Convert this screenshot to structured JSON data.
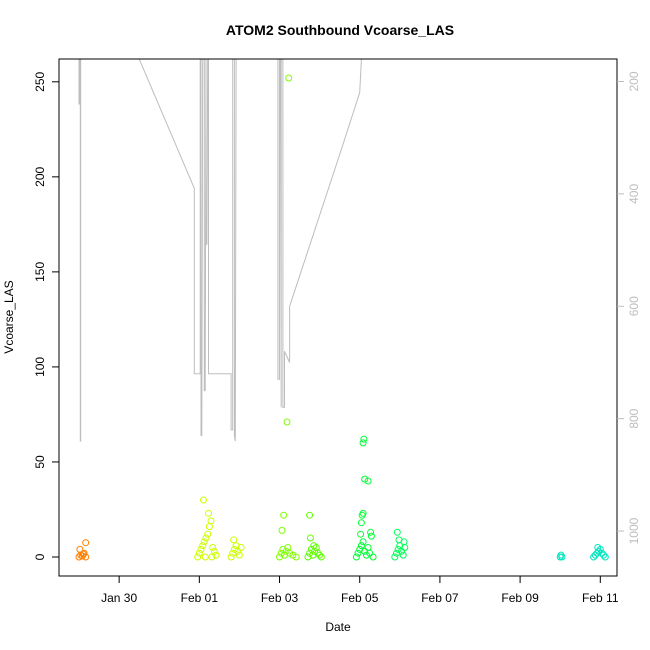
{
  "chart_data": {
    "type": "scatter",
    "title": "ATOM2 Southbound Vcoarse_LAS",
    "xlabel": "Date",
    "ylabel": "Vcoarse_LAS",
    "x_axis": {
      "type": "date",
      "range": [
        "2024-01-28T12:00",
        "2024-02-11T10:00"
      ],
      "ticks": [
        "2024-01-30",
        "2024-02-01",
        "2024-02-03",
        "2024-02-05",
        "2024-02-07",
        "2024-02-09",
        "2024-02-11"
      ],
      "tick_labels": [
        "Jan 30",
        "Feb 01",
        "Feb 03",
        "Feb 05",
        "Feb 07",
        "Feb 09",
        "Feb 11"
      ]
    },
    "y_left": {
      "range": [
        -10,
        262
      ],
      "ticks": [
        0,
        50,
        100,
        150,
        200,
        250
      ],
      "tick_labels": [
        "0",
        "50",
        "100",
        "150",
        "200",
        "250"
      ]
    },
    "y_right": {
      "reversed": true,
      "range": [
        1080,
        160
      ],
      "ticks": [
        200,
        400,
        600,
        800,
        1000
      ],
      "tick_labels": [
        "200",
        "400",
        "600",
        "800",
        "1000"
      ],
      "color": "#bdbdbd"
    },
    "points": [
      {
        "x": "2024-01-29T00:00",
        "y": 0,
        "color": "#ff7f00"
      },
      {
        "x": "2024-01-29T01:00",
        "y": 1,
        "color": "#ff7f00"
      },
      {
        "x": "2024-01-29T02:00",
        "y": 0.5,
        "color": "#ff7f00"
      },
      {
        "x": "2024-01-29T03:00",
        "y": 2,
        "color": "#ff7f00"
      },
      {
        "x": "2024-01-29T00:30",
        "y": 4,
        "color": "#ff7f00"
      },
      {
        "x": "2024-01-29T04:00",
        "y": 7.5,
        "color": "#ff7f00"
      },
      {
        "x": "2024-01-29T02:30",
        "y": 1.5,
        "color": "#ff7f00"
      },
      {
        "x": "2024-01-29T04:00",
        "y": 0,
        "color": "#ff7f00"
      },
      {
        "x": "2024-01-31T23:00",
        "y": 0,
        "color": "#ccff00"
      },
      {
        "x": "2024-02-01T00:00",
        "y": 2,
        "color": "#ccff00"
      },
      {
        "x": "2024-02-01T01:00",
        "y": 4,
        "color": "#ccff00"
      },
      {
        "x": "2024-02-01T02:00",
        "y": 6,
        "color": "#ccff00"
      },
      {
        "x": "2024-02-01T03:00",
        "y": 8,
        "color": "#ccff00"
      },
      {
        "x": "2024-02-01T04:00",
        "y": 10,
        "color": "#ccff00"
      },
      {
        "x": "2024-02-01T05:00",
        "y": 12,
        "color": "#ccff00"
      },
      {
        "x": "2024-02-01T06:00",
        "y": 16,
        "color": "#ccff00"
      },
      {
        "x": "2024-02-01T07:00",
        "y": 19,
        "color": "#ccff00"
      },
      {
        "x": "2024-02-01T05:30",
        "y": 23,
        "color": "#ccff00"
      },
      {
        "x": "2024-02-01T02:30",
        "y": 30,
        "color": "#ccff00"
      },
      {
        "x": "2024-02-01T08:00",
        "y": 5,
        "color": "#ccff00"
      },
      {
        "x": "2024-02-01T09:00",
        "y": 3,
        "color": "#ccff00"
      },
      {
        "x": "2024-02-01T10:00",
        "y": 1,
        "color": "#ccff00"
      },
      {
        "x": "2024-02-01T03:30",
        "y": 0,
        "color": "#ccff00"
      },
      {
        "x": "2024-02-01T07:30",
        "y": 0,
        "color": "#ccff00"
      },
      {
        "x": "2024-02-01T19:00",
        "y": 0,
        "color": "#ccff00"
      },
      {
        "x": "2024-02-01T20:00",
        "y": 2,
        "color": "#ccff00"
      },
      {
        "x": "2024-02-01T21:00",
        "y": 4,
        "color": "#ccff00"
      },
      {
        "x": "2024-02-01T22:00",
        "y": 6,
        "color": "#ccff00"
      },
      {
        "x": "2024-02-01T20:30",
        "y": 9,
        "color": "#ccff00"
      },
      {
        "x": "2024-02-01T23:00",
        "y": 3,
        "color": "#ccff00"
      },
      {
        "x": "2024-02-02T00:00",
        "y": 1,
        "color": "#ccff00"
      },
      {
        "x": "2024-02-02T01:00",
        "y": 5,
        "color": "#ccff00"
      },
      {
        "x": "2024-02-03T00:00",
        "y": 0,
        "color": "#7fff00"
      },
      {
        "x": "2024-02-03T01:00",
        "y": 2,
        "color": "#7fff00"
      },
      {
        "x": "2024-02-03T02:00",
        "y": 4,
        "color": "#7fff00"
      },
      {
        "x": "2024-02-03T03:00",
        "y": 1,
        "color": "#7fff00"
      },
      {
        "x": "2024-02-03T04:00",
        "y": 3,
        "color": "#7fff00"
      },
      {
        "x": "2024-02-03T05:00",
        "y": 5,
        "color": "#7fff00"
      },
      {
        "x": "2024-02-03T06:00",
        "y": 2,
        "color": "#7fff00"
      },
      {
        "x": "2024-02-03T08:00",
        "y": 1,
        "color": "#7fff00"
      },
      {
        "x": "2024-02-03T10:00",
        "y": 0,
        "color": "#7fff00"
      },
      {
        "x": "2024-02-03T01:30",
        "y": 14,
        "color": "#7fff00"
      },
      {
        "x": "2024-02-03T02:30",
        "y": 22,
        "color": "#7fff00"
      },
      {
        "x": "2024-02-03T04:30",
        "y": 71,
        "color": "#7fff00"
      },
      {
        "x": "2024-02-03T05:30",
        "y": 252,
        "color": "#7fff00"
      },
      {
        "x": "2024-02-03T17:00",
        "y": 0,
        "color": "#5fff00"
      },
      {
        "x": "2024-02-03T18:00",
        "y": 2,
        "color": "#5fff00"
      },
      {
        "x": "2024-02-03T19:00",
        "y": 4,
        "color": "#5fff00"
      },
      {
        "x": "2024-02-03T20:00",
        "y": 1,
        "color": "#5fff00"
      },
      {
        "x": "2024-02-03T21:00",
        "y": 3,
        "color": "#5fff00"
      },
      {
        "x": "2024-02-03T22:00",
        "y": 5,
        "color": "#5fff00"
      },
      {
        "x": "2024-02-03T23:00",
        "y": 2,
        "color": "#5fff00"
      },
      {
        "x": "2024-02-04T00:00",
        "y": 1,
        "color": "#5fff00"
      },
      {
        "x": "2024-02-04T01:00",
        "y": 0,
        "color": "#5fff00"
      },
      {
        "x": "2024-02-03T18:30",
        "y": 10,
        "color": "#5fff00"
      },
      {
        "x": "2024-02-03T18:00",
        "y": 22,
        "color": "#5fff00"
      },
      {
        "x": "2024-02-03T20:30",
        "y": 6,
        "color": "#5fff00"
      },
      {
        "x": "2024-02-04T22:00",
        "y": 0,
        "color": "#00ff33"
      },
      {
        "x": "2024-02-04T23:00",
        "y": 2,
        "color": "#00ff33"
      },
      {
        "x": "2024-02-05T00:00",
        "y": 4,
        "color": "#00ff33"
      },
      {
        "x": "2024-02-05T01:00",
        "y": 6,
        "color": "#00ff33"
      },
      {
        "x": "2024-02-05T02:00",
        "y": 8,
        "color": "#00ff33"
      },
      {
        "x": "2024-02-05T03:00",
        "y": 3,
        "color": "#00ff33"
      },
      {
        "x": "2024-02-05T04:00",
        "y": 1,
        "color": "#00ff33"
      },
      {
        "x": "2024-02-05T05:00",
        "y": 5,
        "color": "#00ff33"
      },
      {
        "x": "2024-02-05T06:00",
        "y": 2,
        "color": "#00ff33"
      },
      {
        "x": "2024-02-05T08:00",
        "y": 0,
        "color": "#00ff33"
      },
      {
        "x": "2024-02-05T00:30",
        "y": 12,
        "color": "#00ff33"
      },
      {
        "x": "2024-02-05T01:00",
        "y": 18,
        "color": "#00ff33"
      },
      {
        "x": "2024-02-05T01:30",
        "y": 22,
        "color": "#00ff33"
      },
      {
        "x": "2024-02-05T02:00",
        "y": 23,
        "color": "#00ff33"
      },
      {
        "x": "2024-02-05T03:00",
        "y": 41,
        "color": "#00ff33"
      },
      {
        "x": "2024-02-05T05:00",
        "y": 40,
        "color": "#00ff33"
      },
      {
        "x": "2024-02-05T02:00",
        "y": 60,
        "color": "#00ff33"
      },
      {
        "x": "2024-02-05T02:30",
        "y": 62,
        "color": "#00ff33"
      },
      {
        "x": "2024-02-05T06:30",
        "y": 13,
        "color": "#00ff33"
      },
      {
        "x": "2024-02-05T07:00",
        "y": 11,
        "color": "#00ff33"
      },
      {
        "x": "2024-02-05T21:00",
        "y": 0,
        "color": "#00ff55"
      },
      {
        "x": "2024-02-05T22:00",
        "y": 2,
        "color": "#00ff55"
      },
      {
        "x": "2024-02-05T23:00",
        "y": 4,
        "color": "#00ff55"
      },
      {
        "x": "2024-02-06T00:00",
        "y": 6,
        "color": "#00ff55"
      },
      {
        "x": "2024-02-06T01:00",
        "y": 3,
        "color": "#00ff55"
      },
      {
        "x": "2024-02-06T02:00",
        "y": 1,
        "color": "#00ff55"
      },
      {
        "x": "2024-02-06T03:00",
        "y": 5,
        "color": "#00ff55"
      },
      {
        "x": "2024-02-05T23:30",
        "y": 9,
        "color": "#00ff55"
      },
      {
        "x": "2024-02-05T22:30",
        "y": 13,
        "color": "#00ff55"
      },
      {
        "x": "2024-02-06T02:30",
        "y": 8,
        "color": "#00ff55"
      },
      {
        "x": "2024-02-10T00:00",
        "y": 0,
        "color": "#00e5bf"
      },
      {
        "x": "2024-02-10T00:30",
        "y": 1,
        "color": "#00e5bf"
      },
      {
        "x": "2024-02-10T01:00",
        "y": 0,
        "color": "#00e5bf"
      },
      {
        "x": "2024-02-10T20:00",
        "y": 0,
        "color": "#00e5bf"
      },
      {
        "x": "2024-02-10T21:00",
        "y": 1,
        "color": "#00e5bf"
      },
      {
        "x": "2024-02-10T22:00",
        "y": 2,
        "color": "#00e5bf"
      },
      {
        "x": "2024-02-10T23:00",
        "y": 3,
        "color": "#00e5bf"
      },
      {
        "x": "2024-02-11T00:00",
        "y": 4,
        "color": "#00e5bf"
      },
      {
        "x": "2024-02-11T01:00",
        "y": 2,
        "color": "#00e5bf"
      },
      {
        "x": "2024-02-11T02:00",
        "y": 1,
        "color": "#00e5bf"
      },
      {
        "x": "2024-02-11T03:00",
        "y": 0,
        "color": "#00e5bf"
      },
      {
        "x": "2024-02-10T22:30",
        "y": 5,
        "color": "#00e5bf"
      }
    ],
    "secondary_line": {
      "color": "#bdbdbd",
      "axis": "right",
      "points": [
        [
          "2024-01-29T00:00",
          160
        ],
        [
          "2024-01-29T00:00",
          240
        ],
        [
          "2024-01-29T00:15",
          240
        ],
        [
          "2024-01-29T00:30",
          160
        ],
        [
          "2024-01-29T00:45",
          160
        ],
        [
          "2024-01-29T00:45",
          840
        ],
        [
          "2024-01-29T01:00",
          840
        ],
        [
          "2024-01-29T01:00",
          160
        ],
        [
          "2024-01-29T18:00",
          160
        ],
        [
          "2024-01-30T12:00",
          160
        ],
        [
          "2024-01-31T21:00",
          390
        ],
        [
          "2024-01-31T21:00",
          720
        ],
        [
          "2024-01-31T23:00",
          720
        ],
        [
          "2024-02-01T00:30",
          720
        ],
        [
          "2024-02-01T00:30",
          160
        ],
        [
          "2024-02-01T01:00",
          160
        ],
        [
          "2024-02-01T01:00",
          830
        ],
        [
          "2024-02-01T01:30",
          830
        ],
        [
          "2024-02-01T02:00",
          160
        ],
        [
          "2024-02-01T03:00",
          160
        ],
        [
          "2024-02-01T03:00",
          750
        ],
        [
          "2024-02-01T03:30",
          750
        ],
        [
          "2024-02-01T04:00",
          160
        ],
        [
          "2024-02-01T04:00",
          490
        ],
        [
          "2024-02-01T04:30",
          490
        ],
        [
          "2024-02-01T05:00",
          160
        ],
        [
          "2024-02-01T05:30",
          160
        ],
        [
          "2024-02-01T05:30",
          720
        ],
        [
          "2024-02-01T19:00",
          720
        ],
        [
          "2024-02-01T19:00",
          820
        ],
        [
          "2024-02-01T20:00",
          820
        ],
        [
          "2024-02-01T20:00",
          160
        ],
        [
          "2024-02-01T21:00",
          160
        ],
        [
          "2024-02-01T21:00",
          830
        ],
        [
          "2024-02-01T21:30",
          840
        ],
        [
          "2024-02-01T22:00",
          160
        ],
        [
          "2024-02-02T23:00",
          160
        ],
        [
          "2024-02-02T23:00",
          730
        ],
        [
          "2024-02-03T00:00",
          730
        ],
        [
          "2024-02-03T00:00",
          160
        ],
        [
          "2024-02-03T00:30",
          160
        ],
        [
          "2024-02-03T01:00",
          780
        ],
        [
          "2024-02-03T01:00",
          160
        ],
        [
          "2024-02-03T02:00",
          160
        ],
        [
          "2024-02-03T02:00",
          780
        ],
        [
          "2024-02-03T03:00",
          780
        ],
        [
          "2024-02-03T03:00",
          680
        ],
        [
          "2024-02-03T06:00",
          700
        ],
        [
          "2024-02-03T06:00",
          600
        ],
        [
          "2024-02-04T12:00",
          330
        ],
        [
          "2024-02-05T00:00",
          220
        ],
        [
          "2024-02-05T01:00",
          160
        ]
      ]
    }
  }
}
